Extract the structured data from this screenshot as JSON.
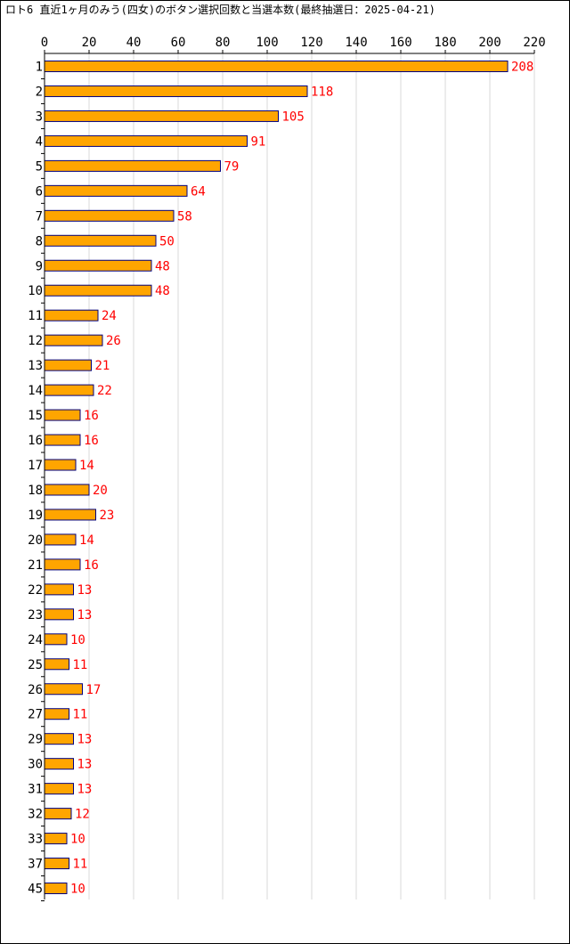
{
  "chart_data": {
    "type": "bar",
    "orientation": "horizontal",
    "title": "ロト6 直近1ヶ月のみう(四女)のボタン選択回数と当選本数(最終抽選日：2025-04-21)",
    "categories": [
      "1",
      "2",
      "3",
      "4",
      "5",
      "6",
      "7",
      "8",
      "9",
      "10",
      "11",
      "12",
      "13",
      "14",
      "15",
      "16",
      "17",
      "18",
      "19",
      "20",
      "21",
      "22",
      "23",
      "24",
      "25",
      "26",
      "27",
      "29",
      "30",
      "31",
      "32",
      "33",
      "37",
      "45"
    ],
    "values": [
      208,
      118,
      105,
      91,
      79,
      64,
      58,
      50,
      48,
      48,
      24,
      26,
      21,
      22,
      16,
      16,
      14,
      20,
      23,
      14,
      16,
      13,
      13,
      10,
      11,
      17,
      11,
      13,
      13,
      13,
      12,
      10,
      11,
      10
    ],
    "xlim": [
      0,
      220
    ],
    "x_ticks": [
      0,
      20,
      40,
      60,
      80,
      100,
      120,
      140,
      160,
      180,
      200,
      220
    ],
    "grid": true,
    "xlabel": "",
    "ylabel": "",
    "colors": {
      "bar_fill": "#FFA500",
      "bar_stroke": "#000080",
      "value_label": "#FF0000",
      "grid": "#D8D8D8",
      "axis": "#000000"
    }
  }
}
